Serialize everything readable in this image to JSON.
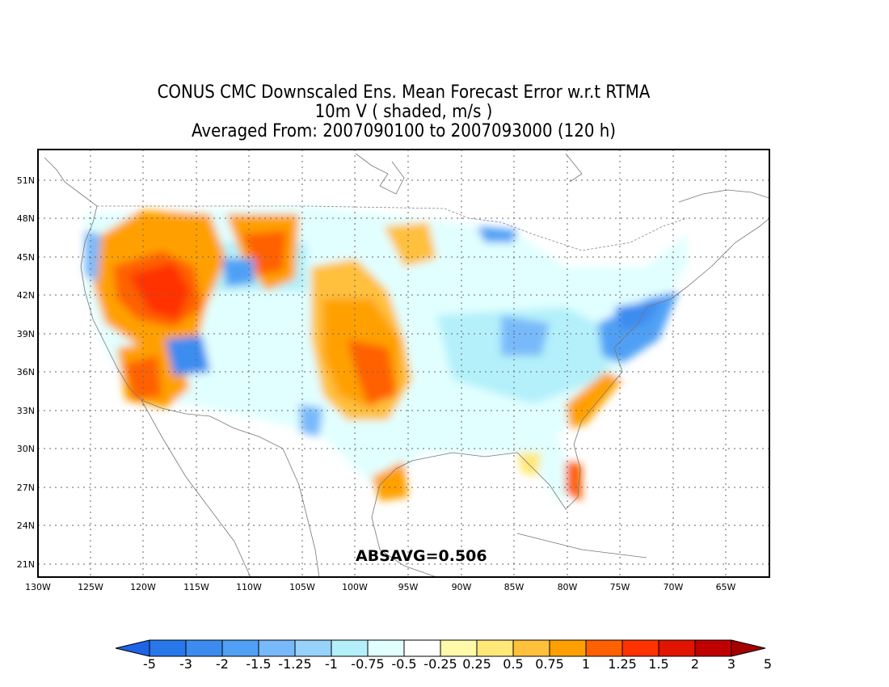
{
  "title": {
    "line1": "CONUS CMC Downscaled Ens. Mean Forecast Error w.r.t RTMA",
    "line2": "10m V ( shaded, m/s )",
    "line3": "Averaged From: 2007090100 to 2007093000 (120 h)"
  },
  "absavg": "ABSAVG=0.506",
  "lat_labels": [
    "51N",
    "48N",
    "45N",
    "42N",
    "39N",
    "36N",
    "33N",
    "30N",
    "27N",
    "24N",
    "21N"
  ],
  "lon_labels": [
    "130W",
    "125W",
    "120W",
    "115W",
    "110W",
    "105W",
    "100W",
    "95W",
    "90W",
    "85W",
    "80W",
    "75W",
    "70W",
    "65W"
  ],
  "colorbar": {
    "labels": [
      "-5",
      "-3",
      "-2",
      "-1.5",
      "-1.25",
      "-1",
      "-0.75",
      "-0.5",
      "-0.25",
      "0.25",
      "0.5",
      "0.75",
      "1",
      "1.25",
      "1.5",
      "2",
      "3",
      "5"
    ],
    "colors": [
      "#1e64e6",
      "#2878eb",
      "#3c8cf0",
      "#50a0f5",
      "#78b9fa",
      "#96d2fa",
      "#b4f0fa",
      "#e1ffff",
      "#ffffff",
      "#fffaaa",
      "#ffe878",
      "#ffc03c",
      "#ffa000",
      "#ff6000",
      "#ff3200",
      "#e11400",
      "#c00000",
      "#a50000"
    ]
  }
}
